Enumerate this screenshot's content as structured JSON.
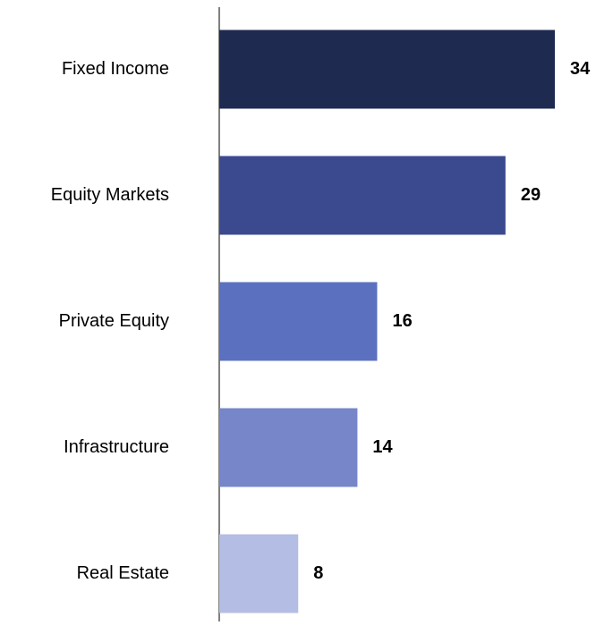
{
  "chart_data": {
    "type": "bar",
    "orientation": "horizontal",
    "categories": [
      "Fixed Income",
      "Equity Markets",
      "Private Equity",
      "Infrastructure",
      "Real Estate"
    ],
    "values": [
      34,
      29,
      16,
      14,
      8
    ],
    "colors": [
      "#1f2a50",
      "#3b4a8f",
      "#5b70be",
      "#7686c9",
      "#b4bde3"
    ]
  }
}
